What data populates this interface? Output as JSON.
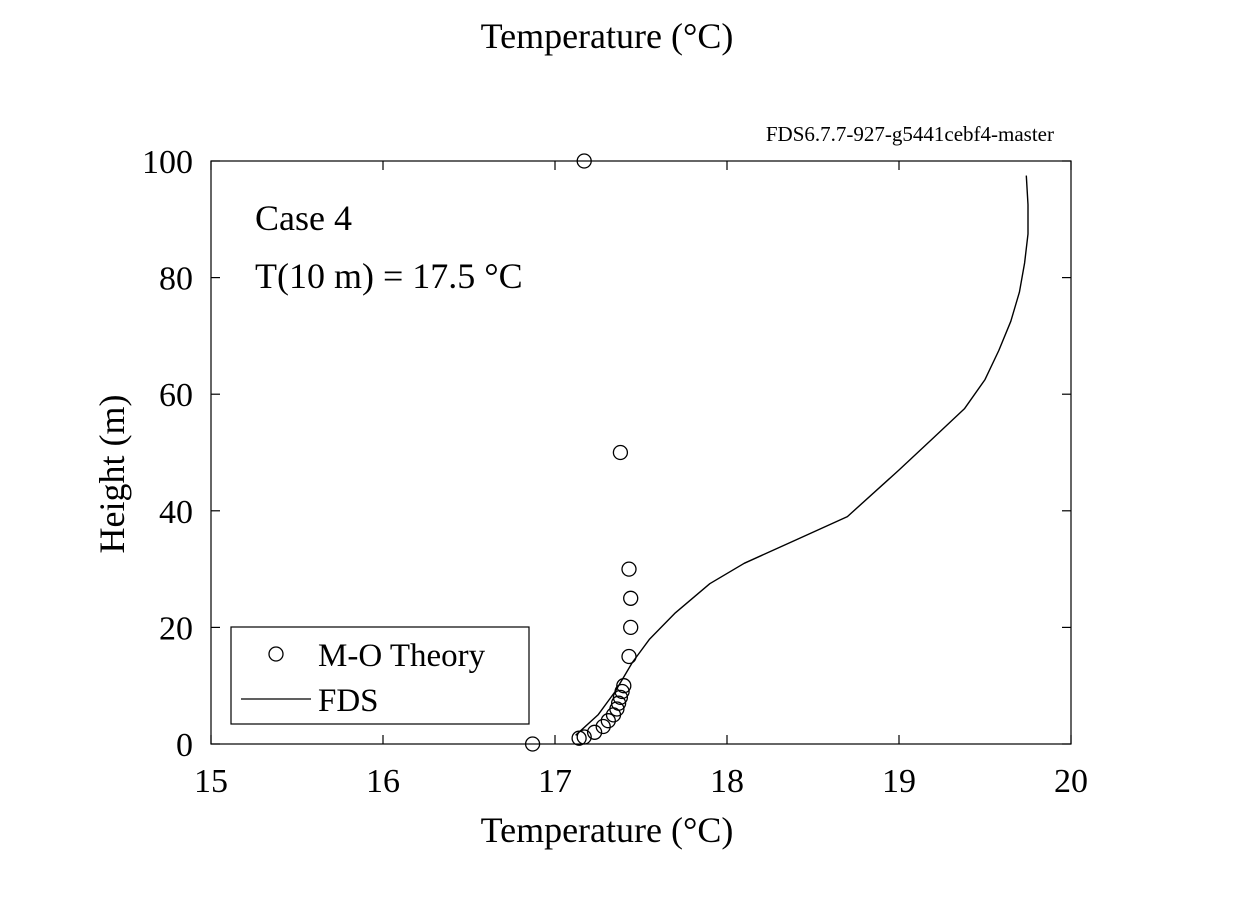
{
  "chart_data": {
    "type": "scatter",
    "title": "Temperature (°C)",
    "version_label": "FDS6.7.7-927-g5441cebf4-master",
    "xlabel": "Temperature (°C)",
    "ylabel": "Height (m)",
    "xlim": [
      15,
      20
    ],
    "ylim": [
      0,
      100
    ],
    "xticks": [
      15,
      16,
      17,
      18,
      19,
      20
    ],
    "yticks": [
      0,
      20,
      40,
      60,
      80,
      100
    ],
    "grid": false,
    "legend_position": "bottom-left",
    "annotations": {
      "case": "Case 4",
      "condition": "T(10 m) = 17.5 °C"
    },
    "series": [
      {
        "name": "M-O Theory",
        "style": "open-circle-markers",
        "color": "#000000",
        "points": [
          [
            16.87,
            0
          ],
          [
            17.14,
            1
          ],
          [
            17.17,
            1.2
          ],
          [
            17.23,
            2
          ],
          [
            17.28,
            3
          ],
          [
            17.31,
            4
          ],
          [
            17.34,
            5
          ],
          [
            17.36,
            6
          ],
          [
            17.37,
            7
          ],
          [
            17.38,
            8
          ],
          [
            17.39,
            9
          ],
          [
            17.4,
            10
          ],
          [
            17.43,
            15
          ],
          [
            17.44,
            20
          ],
          [
            17.44,
            25
          ],
          [
            17.43,
            30
          ],
          [
            17.38,
            50
          ],
          [
            17.17,
            100
          ]
        ]
      },
      {
        "name": "FDS",
        "style": "solid-line",
        "color": "#000000",
        "points": [
          [
            17.12,
            1.5
          ],
          [
            17.25,
            5
          ],
          [
            17.35,
            9
          ],
          [
            17.45,
            14
          ],
          [
            17.55,
            18
          ],
          [
            17.7,
            22.5
          ],
          [
            17.9,
            27.5
          ],
          [
            18.1,
            31
          ],
          [
            18.4,
            35
          ],
          [
            18.7,
            39
          ],
          [
            19.0,
            47
          ],
          [
            19.2,
            52.5
          ],
          [
            19.38,
            57.5
          ],
          [
            19.5,
            62.5
          ],
          [
            19.58,
            67.5
          ],
          [
            19.65,
            72.5
          ],
          [
            19.7,
            77.5
          ],
          [
            19.73,
            82.5
          ],
          [
            19.75,
            87.5
          ],
          [
            19.75,
            92.5
          ],
          [
            19.74,
            97.5
          ]
        ]
      }
    ]
  }
}
